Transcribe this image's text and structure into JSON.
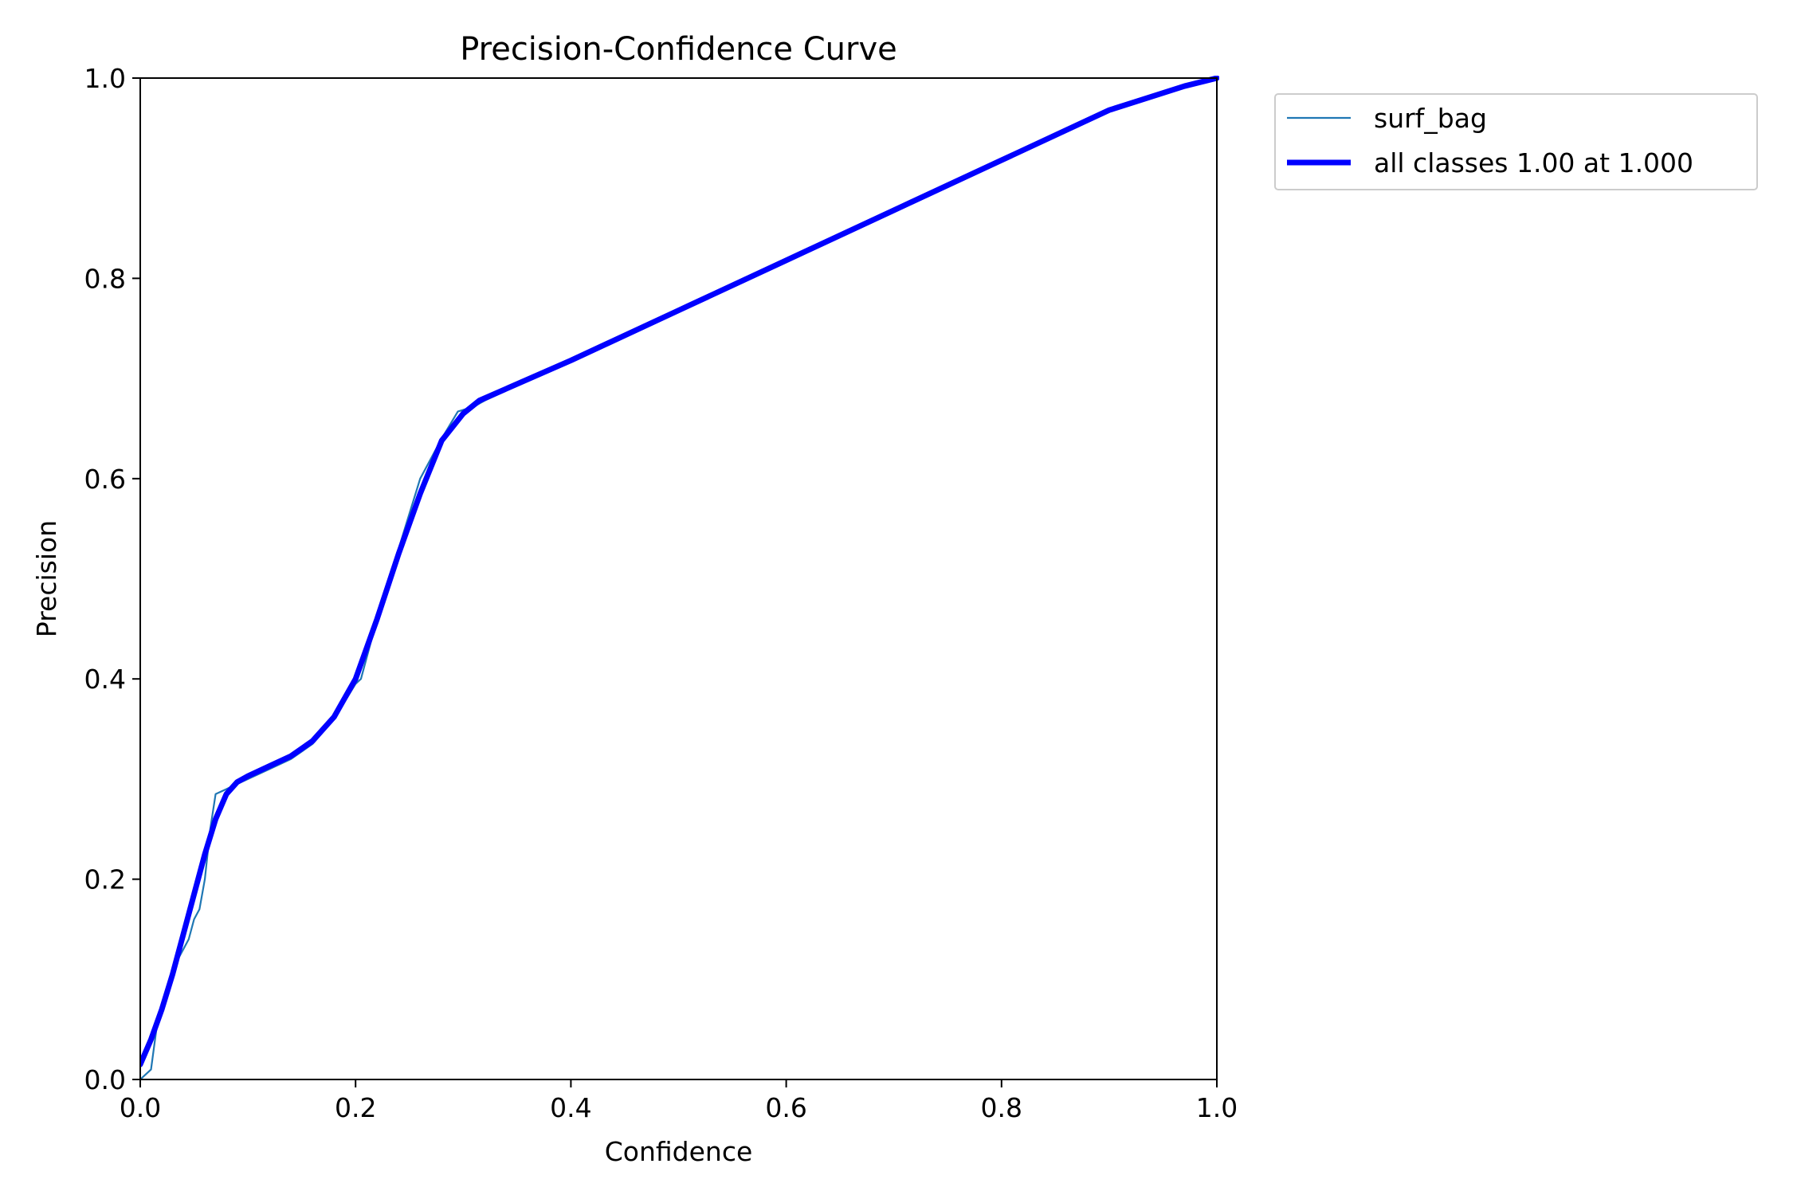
{
  "chart_data": {
    "type": "line",
    "title": "Precision-Confidence Curve",
    "xlabel": "Confidence",
    "ylabel": "Precision",
    "xlim": [
      0,
      1
    ],
    "ylim": [
      0,
      1
    ],
    "x_ticks": [
      "0.0",
      "0.2",
      "0.4",
      "0.6",
      "0.8",
      "1.0"
    ],
    "y_ticks": [
      "0.0",
      "0.2",
      "0.4",
      "0.6",
      "0.8",
      "1.0"
    ],
    "grid": false,
    "legend_position": "outside-upper-right",
    "series": [
      {
        "name": "surf_bag",
        "color": "#1f77b4",
        "x": [
          0.0,
          0.01,
          0.015,
          0.02,
          0.025,
          0.03,
          0.035,
          0.04,
          0.045,
          0.05,
          0.055,
          0.06,
          0.065,
          0.07,
          0.08,
          0.09,
          0.1,
          0.12,
          0.14,
          0.16,
          0.18,
          0.2,
          0.205,
          0.22,
          0.24,
          0.26,
          0.28,
          0.295,
          0.31,
          0.32,
          0.4,
          0.5,
          0.6,
          0.7,
          0.8,
          0.9,
          0.97,
          1.0
        ],
        "y": [
          0.0,
          0.01,
          0.05,
          0.07,
          0.09,
          0.11,
          0.12,
          0.13,
          0.14,
          0.16,
          0.17,
          0.2,
          0.25,
          0.285,
          0.29,
          0.295,
          0.3,
          0.31,
          0.32,
          0.335,
          0.36,
          0.395,
          0.4,
          0.46,
          0.53,
          0.6,
          0.64,
          0.667,
          0.672,
          0.678,
          0.718,
          0.768,
          0.818,
          0.868,
          0.918,
          0.968,
          0.992,
          1.0
        ]
      },
      {
        "name": "all classes 1.00 at 1.000",
        "color": "#0000ff",
        "x": [
          0.0,
          0.01,
          0.02,
          0.03,
          0.04,
          0.05,
          0.06,
          0.07,
          0.08,
          0.09,
          0.1,
          0.12,
          0.14,
          0.16,
          0.18,
          0.2,
          0.22,
          0.24,
          0.26,
          0.28,
          0.3,
          0.315,
          0.4,
          0.5,
          0.6,
          0.7,
          0.8,
          0.9,
          0.97,
          1.0
        ],
        "y": [
          0.015,
          0.04,
          0.07,
          0.105,
          0.145,
          0.185,
          0.225,
          0.26,
          0.285,
          0.297,
          0.303,
          0.313,
          0.323,
          0.338,
          0.362,
          0.4,
          0.46,
          0.525,
          0.585,
          0.638,
          0.665,
          0.678,
          0.718,
          0.768,
          0.818,
          0.868,
          0.918,
          0.968,
          0.992,
          1.0
        ]
      }
    ]
  }
}
